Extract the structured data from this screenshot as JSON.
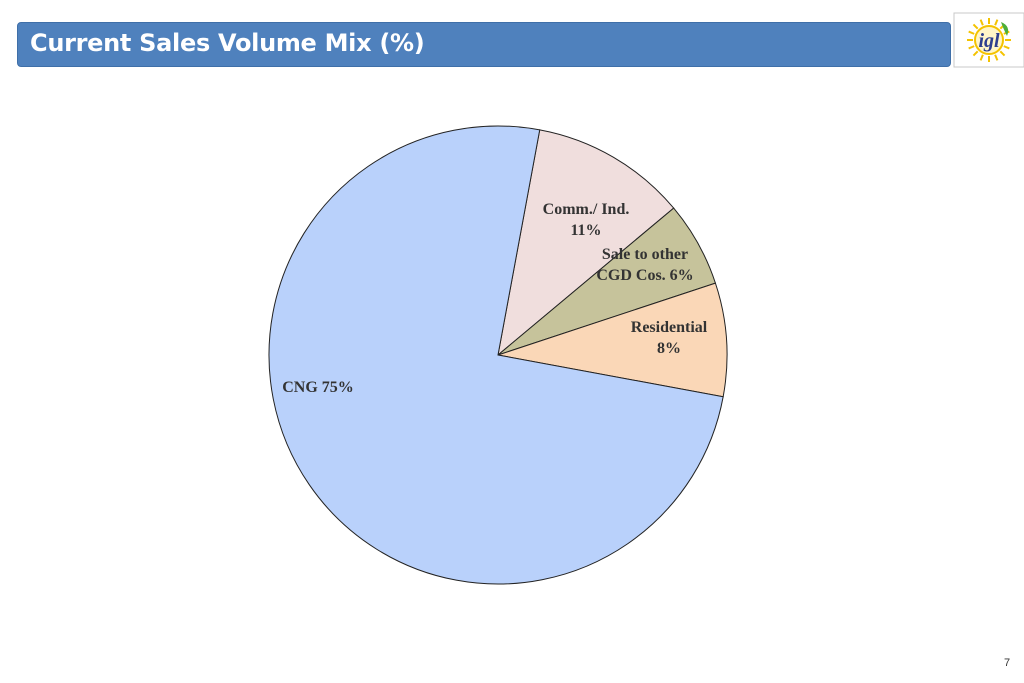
{
  "header": {
    "title": "Current Sales Volume Mix (%)"
  },
  "logo": {
    "text": "igl",
    "colors": {
      "text": "#2e3f8f",
      "sun": "#f4c300",
      "leaf": "#4cae3a"
    },
    "icon": "igl-logo"
  },
  "chart_data": {
    "type": "pie",
    "title": "",
    "slices": [
      {
        "name": "CNG",
        "value": 75,
        "label_lines": [
          "CNG 75%"
        ],
        "color": "#b9d1fb"
      },
      {
        "name": "Comm./ Ind.",
        "value": 11,
        "label_lines": [
          "Comm./ Ind.",
          "11%"
        ],
        "color": "#f0dedd"
      },
      {
        "name": "Sale to other CGD Cos.",
        "value": 6,
        "label_lines": [
          "Sale to other",
          "CGD Cos.  6%"
        ],
        "color": "#c6c39b"
      },
      {
        "name": "Residential",
        "value": 8,
        "label_lines": [
          "Residential",
          "8%"
        ],
        "color": "#fad7b7"
      }
    ]
  },
  "footer": {
    "page_number": "7"
  }
}
